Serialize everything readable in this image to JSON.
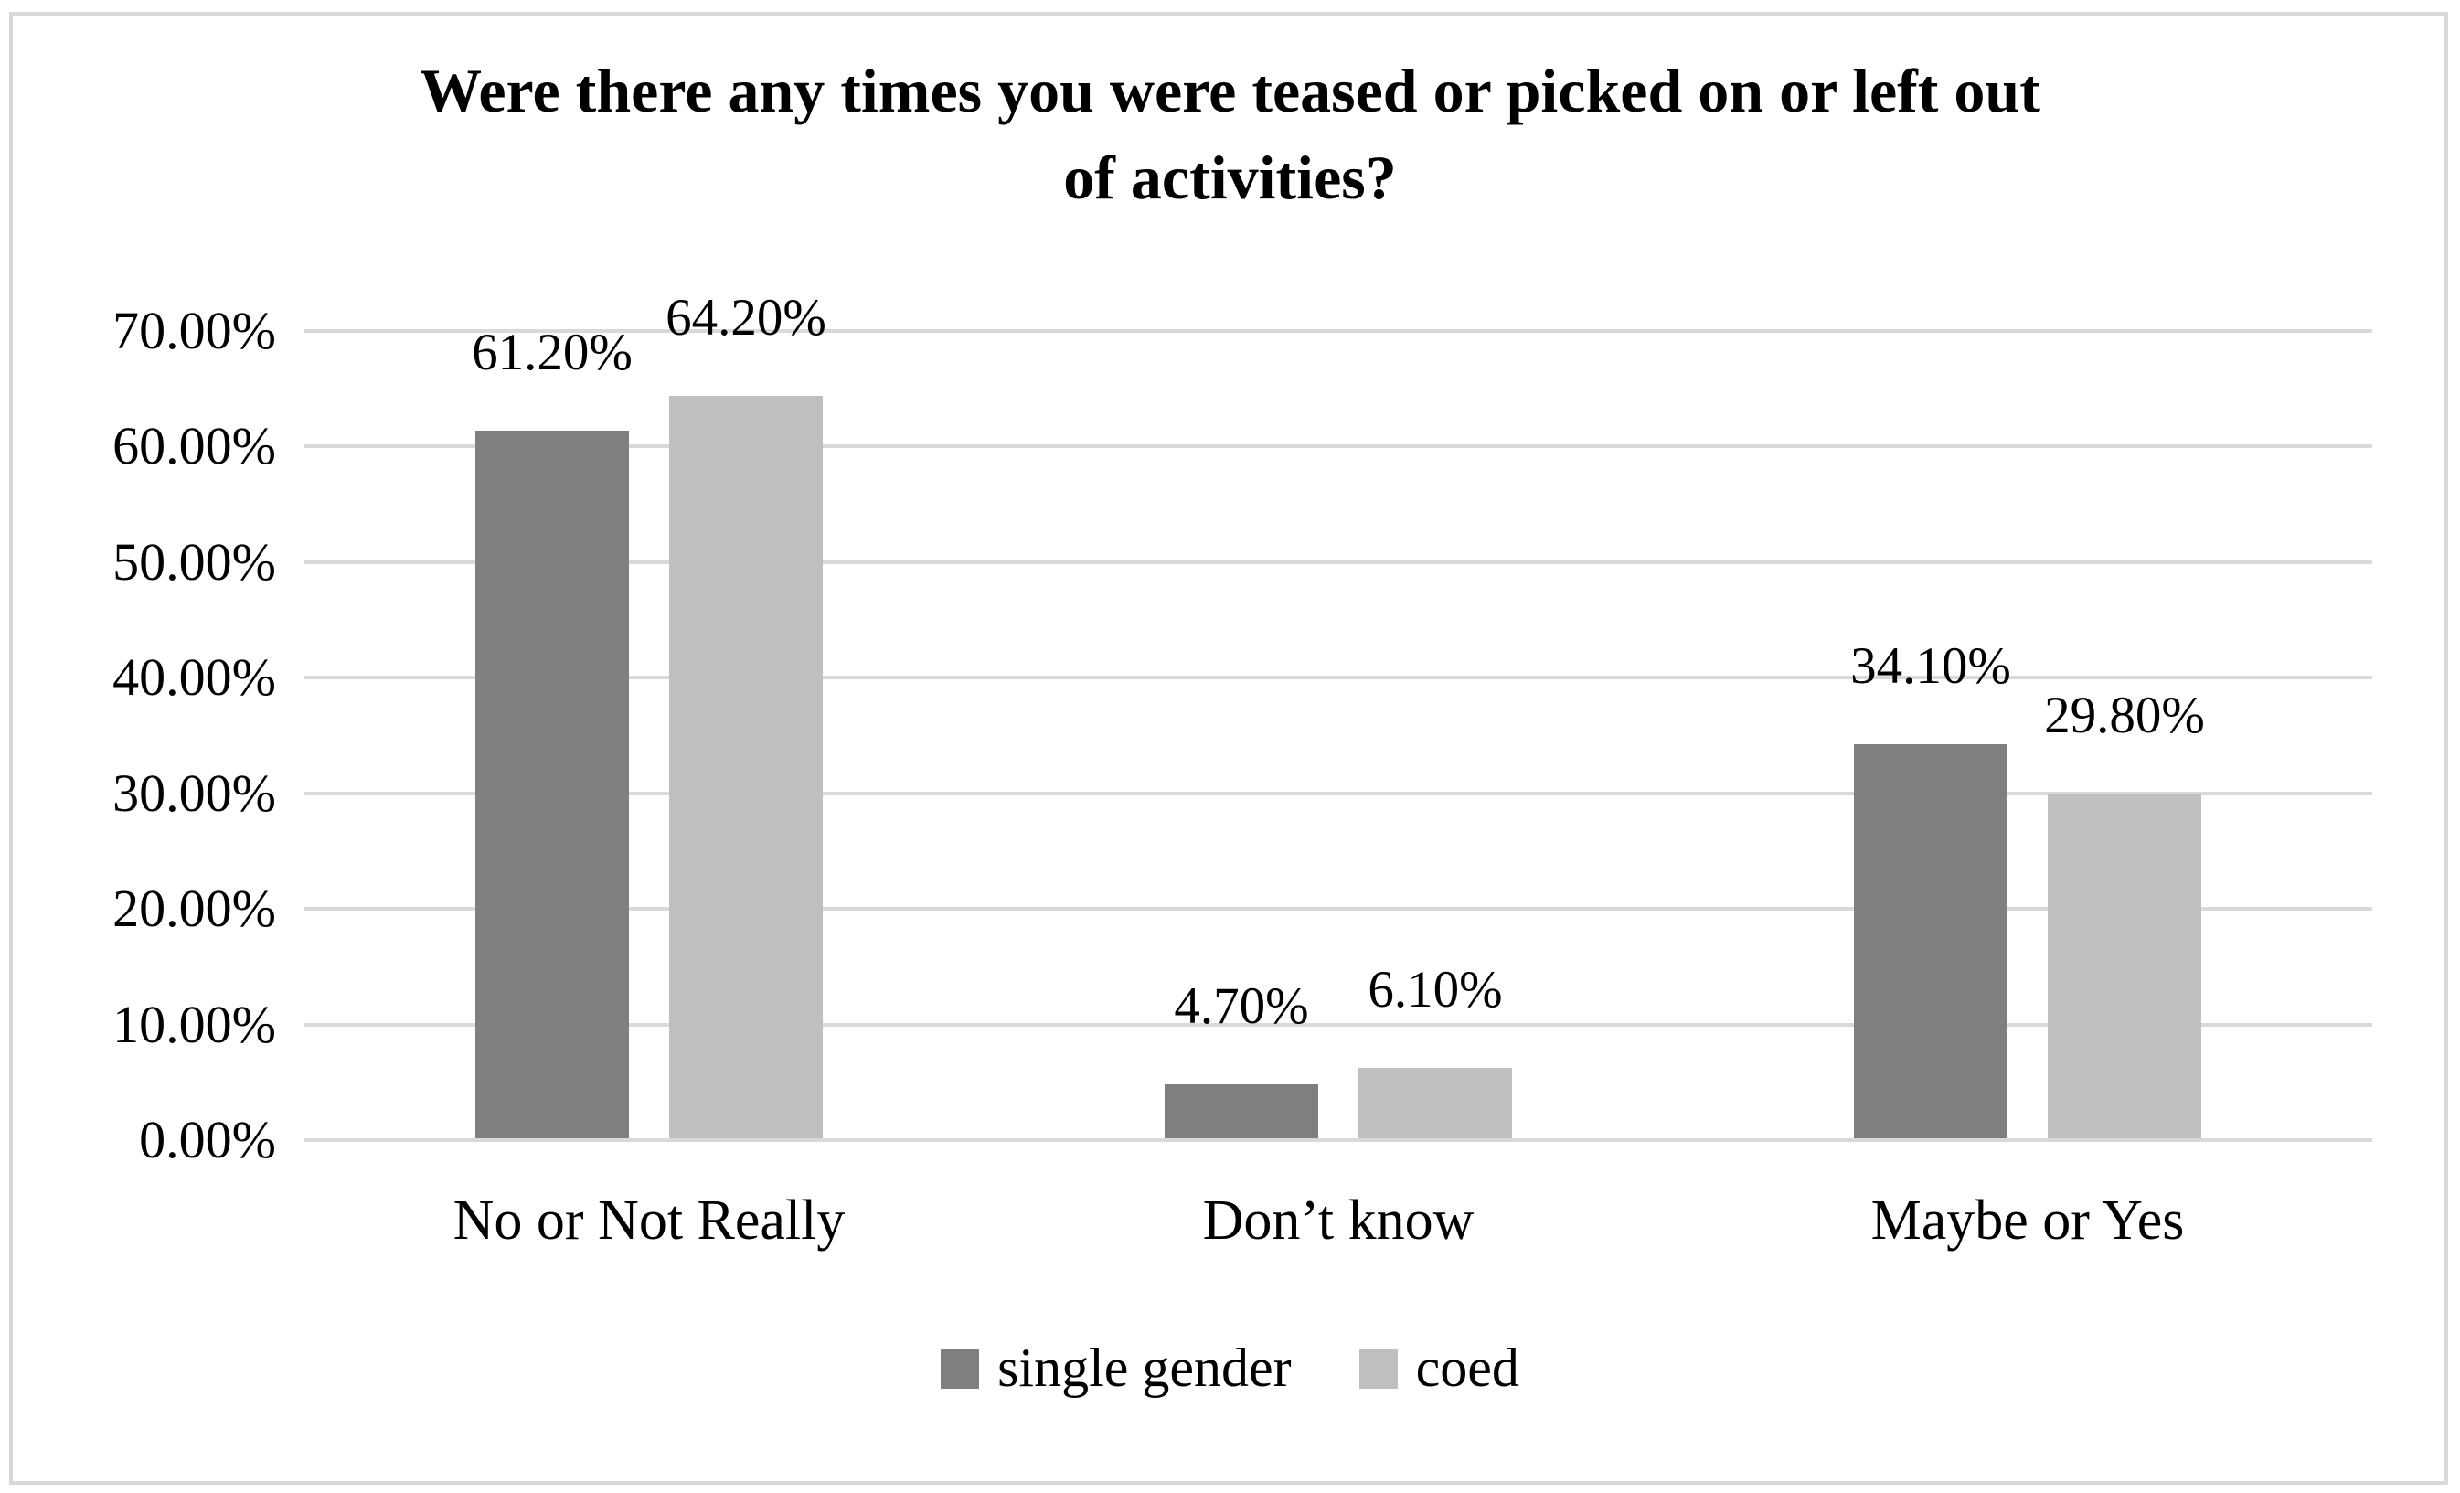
{
  "chart_data": {
    "type": "bar",
    "title": "Were there any times you were teased or picked on or left out of activities?",
    "title_lines": [
      "Were there any times you were teased or picked on or left out",
      "of activities?"
    ],
    "categories": [
      "No or Not Really",
      "Don’t know",
      "Maybe or Yes"
    ],
    "series": [
      {
        "name": "single gender",
        "color": "#7f7f7f",
        "values": [
          61.2,
          4.7,
          34.1
        ],
        "value_labels": [
          "61.20%",
          "4.70%",
          "34.10%"
        ]
      },
      {
        "name": "coed",
        "color": "#bfbfbf",
        "values": [
          64.2,
          6.1,
          29.8
        ],
        "value_labels": [
          "64.20%",
          "6.10%",
          "29.80%"
        ]
      }
    ],
    "ylim": [
      0,
      70
    ],
    "ytick_step": 10,
    "ytick_labels": [
      "0.00%",
      "10.00%",
      "20.00%",
      "30.00%",
      "40.00%",
      "50.00%",
      "60.00%",
      "70.00%"
    ],
    "grid": true,
    "legend_position": "bottom",
    "colors": {
      "background": "#ffffff",
      "text": "#000000",
      "gridline": "#d9d9d9",
      "frame_border": "#d9d9d9"
    }
  }
}
